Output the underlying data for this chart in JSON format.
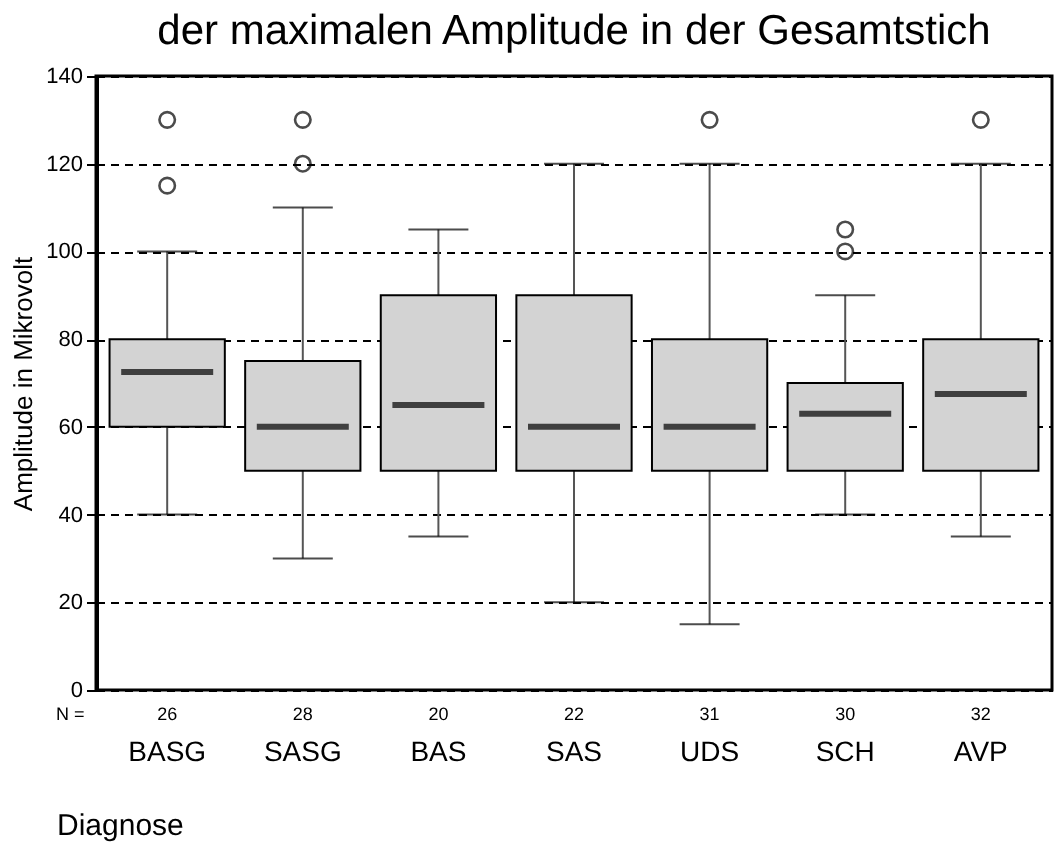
{
  "chart_data": {
    "type": "box",
    "title": "der maximalen Amplitude in der Gesamtstich",
    "xlabel": "Diagnose",
    "ylabel": "Amplitude in Mikrovolt",
    "categories": [
      "BASG",
      "SASG",
      "BAS",
      "SAS",
      "UDS",
      "SCH",
      "AVP"
    ],
    "boxes": [
      {
        "low": 40,
        "q1": 60,
        "median": 72.5,
        "q3": 80,
        "high": 100,
        "outliers": [
          115,
          130
        ]
      },
      {
        "low": 30,
        "q1": 50,
        "median": 60,
        "q3": 75,
        "high": 110,
        "outliers": [
          120,
          130
        ]
      },
      {
        "low": 35,
        "q1": 50,
        "median": 65,
        "q3": 90,
        "high": 105
      },
      {
        "low": 20,
        "q1": 50,
        "median": 60,
        "q3": 90,
        "high": 120
      },
      {
        "low": 15,
        "q1": 50,
        "median": 60,
        "q3": 80,
        "high": 120,
        "outliers": [
          130
        ]
      },
      {
        "low": 40,
        "q1": 50,
        "median": 63,
        "q3": 70,
        "high": 90,
        "outliers": [
          100,
          105
        ]
      },
      {
        "low": 35,
        "q1": 50,
        "median": 67.5,
        "q3": 80,
        "high": 120,
        "outliers": [
          130
        ]
      }
    ],
    "color": "#d3d3d3",
    "annotations": [
      "N =",
      "26",
      "28",
      "20",
      "22",
      "31",
      "30",
      "32"
    ],
    "ylim": [
      0,
      140
    ],
    "yticks": [
      0,
      20,
      40,
      60,
      80,
      100,
      120,
      140
    ],
    "grid": "y"
  }
}
